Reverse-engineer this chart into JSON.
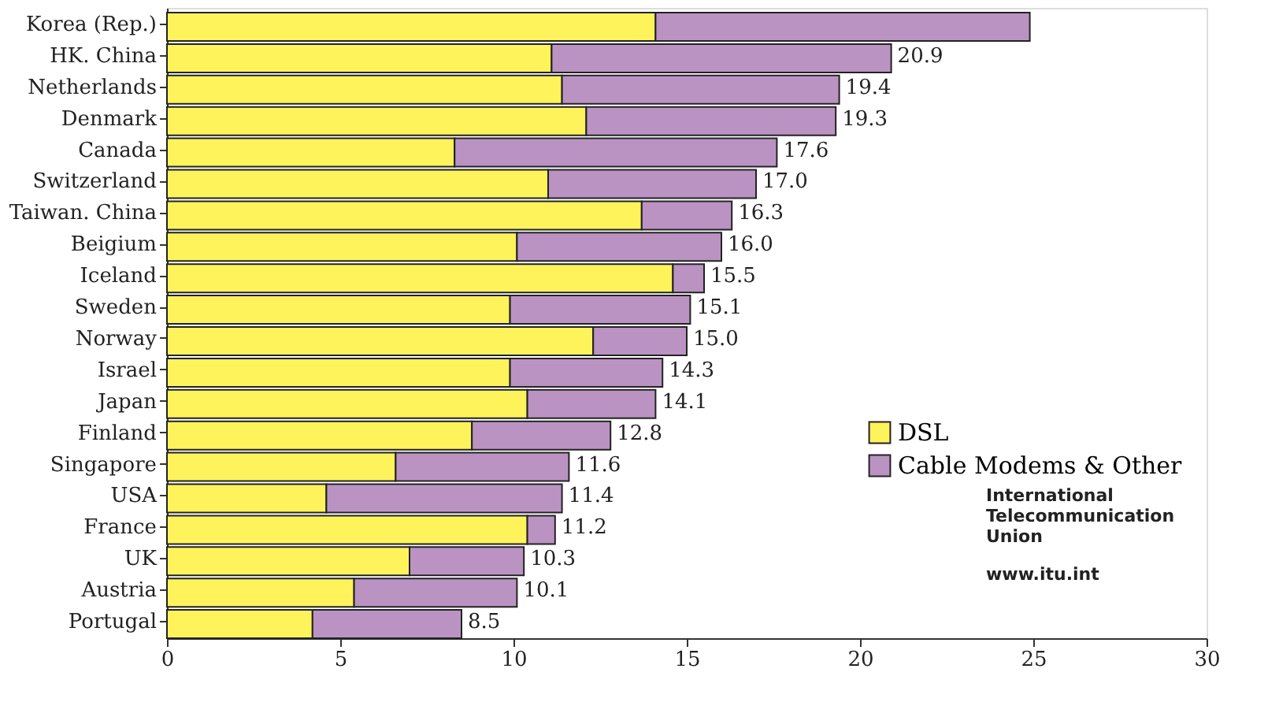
{
  "chart_data": {
    "type": "bar",
    "orientation": "horizontal",
    "stacked": true,
    "categories": [
      "Korea (Rep.)",
      "HK. China",
      "Netherlands",
      "Denmark",
      "Canada",
      "Switzerland",
      "Taiwan. China",
      "Beigium",
      "Iceland",
      "Sweden",
      "Norway",
      "Israel",
      "Japan",
      "Finland",
      "Singapore",
      "USA",
      "France",
      "UK",
      "Austria",
      "Portugal"
    ],
    "series": [
      {
        "name": "DSL",
        "color": "#fff35c",
        "values": [
          14.1,
          11.1,
          11.4,
          12.1,
          8.3,
          11.0,
          13.7,
          10.1,
          14.6,
          9.9,
          12.3,
          9.9,
          10.4,
          8.8,
          6.6,
          4.6,
          10.4,
          7.0,
          5.4,
          4.2
        ]
      },
      {
        "name": "Cable Modems & Other",
        "color": "#bb93c3",
        "values": [
          10.8,
          9.8,
          8.0,
          7.2,
          9.3,
          6.0,
          2.6,
          5.9,
          0.9,
          5.2,
          2.7,
          4.4,
          3.7,
          4.0,
          5.0,
          6.8,
          0.8,
          3.3,
          4.7,
          4.3
        ]
      }
    ],
    "totals": [
      null,
      "20.9",
      "19.4",
      "19.3",
      "17.6",
      "17.0",
      "16.3",
      "16.0",
      "15.5",
      "15.1",
      "15.0",
      "14.3",
      "14.1",
      "12.8",
      "11.6",
      "11.4",
      "11.2",
      "10.3",
      "10.1",
      "8.5"
    ],
    "xlim": [
      0,
      30
    ],
    "xticks": [
      0,
      5,
      10,
      15,
      20,
      25,
      30
    ],
    "grid": false,
    "legend": "right",
    "annotations": [
      "International Telecommunication Union",
      "www.itu.int"
    ]
  }
}
